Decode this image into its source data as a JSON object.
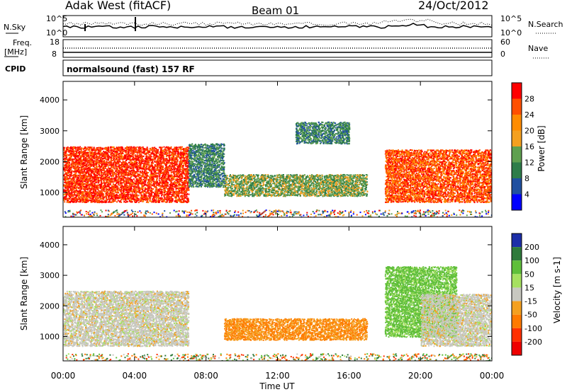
{
  "header": {
    "station": "Adak West (fitACF)",
    "beam": "Beam 01",
    "date": "24/Oct/2012"
  },
  "top_panel": {
    "nsky_label": "N.Sky",
    "nsearch_label": "N.Search",
    "left_ticks": [
      "10^5",
      "10^0"
    ],
    "right_ticks": [
      "10^5",
      "10^0"
    ],
    "freq_label_1": "Freq.",
    "freq_label_2": "[MHz]",
    "freq_ticks": [
      "18",
      "8"
    ],
    "nave_label": "Nave",
    "nave_ticks": [
      "60",
      "0"
    ],
    "cpid_label": "CPID",
    "cpid_value": "normalsound (fast) 157 RF"
  },
  "colors": {
    "power_scale": [
      "#0000ff",
      "#2050a0",
      "#2e7d4a",
      "#5fa050",
      "#f4a020",
      "#ff8c00",
      "#ff5000",
      "#ff0000"
    ],
    "velocity_scale": [
      "#1c2ea8",
      "#2f7a3b",
      "#5fbf3a",
      "#a6e060",
      "#c8c8c0",
      "#f4a020",
      "#ff7a00",
      "#ff3000",
      "#ee0000"
    ]
  },
  "chart_data": [
    {
      "type": "heatmap",
      "title": "",
      "xlabel": "Time UT",
      "ylabel": "Slant Range [km]",
      "xlim": [
        0,
        24
      ],
      "ylim": [
        200,
        4600
      ],
      "x_ticks": [
        "00:00",
        "04:00",
        "08:00",
        "12:00",
        "16:00",
        "20:00",
        "00:00"
      ],
      "y_ticks": [
        "1000",
        "2000",
        "3000",
        "4000"
      ],
      "colorbar": {
        "label": "Power [dB]",
        "ticks": [
          "4",
          "8",
          "12",
          "16",
          "20",
          "24",
          "28"
        ],
        "range": [
          0,
          32
        ]
      },
      "regions": [
        {
          "t": [
            0,
            7
          ],
          "range": [
            700,
            2500
          ],
          "value": 28
        },
        {
          "t": [
            7,
            9
          ],
          "range": [
            1200,
            2600
          ],
          "value": 10
        },
        {
          "t": [
            9,
            17
          ],
          "range": [
            900,
            1600
          ],
          "value": 14
        },
        {
          "t": [
            13,
            16
          ],
          "range": [
            2600,
            3300
          ],
          "value": 10
        },
        {
          "t": [
            18,
            24
          ],
          "range": [
            700,
            2400
          ],
          "value": 26
        }
      ]
    },
    {
      "type": "heatmap",
      "title": "",
      "xlabel": "Time UT",
      "ylabel": "Slant Range [km]",
      "xlim": [
        0,
        24
      ],
      "ylim": [
        200,
        4600
      ],
      "x_ticks": [
        "00:00",
        "04:00",
        "08:00",
        "12:00",
        "16:00",
        "20:00",
        "00:00"
      ],
      "y_ticks": [
        "1000",
        "2000",
        "3000",
        "4000"
      ],
      "colorbar": {
        "label": "Velocity [m s-1]",
        "ticks": [
          "200",
          "100",
          "50",
          "15",
          "-15",
          "-50",
          "-100",
          "-200"
        ],
        "range": [
          -250,
          250
        ]
      },
      "regions": [
        {
          "t": [
            0,
            7
          ],
          "range": [
            700,
            2500
          ],
          "value": 0
        },
        {
          "t": [
            9,
            17
          ],
          "range": [
            900,
            1600
          ],
          "value": -50
        },
        {
          "t": [
            18,
            22
          ],
          "range": [
            1000,
            3300
          ],
          "value": 40
        },
        {
          "t": [
            20,
            24
          ],
          "range": [
            700,
            2400
          ],
          "value": 0
        }
      ]
    }
  ]
}
